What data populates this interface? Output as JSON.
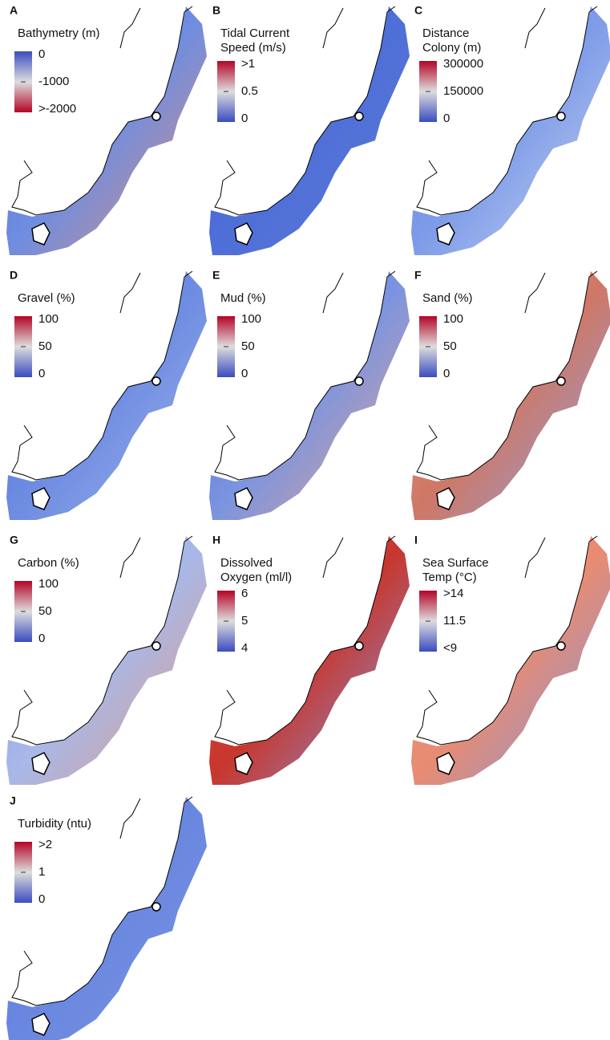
{
  "panels": [
    {
      "letter": "A",
      "title": [
        "Bathymetry (m)"
      ],
      "legend": [
        "0",
        "-1000",
        ">-2000"
      ],
      "colorbar_reversed": true
    },
    {
      "letter": "B",
      "title": [
        "Tidal Current",
        "Speed (m/s)"
      ],
      "legend": [
        ">1",
        "0.5",
        "0"
      ],
      "colorbar_reversed": false
    },
    {
      "letter": "C",
      "title": [
        "Distance",
        "Colony (m)"
      ],
      "legend": [
        "300000",
        "150000",
        "0"
      ],
      "colorbar_reversed": false
    },
    {
      "letter": "D",
      "title": [
        "Gravel (%)"
      ],
      "legend": [
        "100",
        "50",
        "0"
      ],
      "colorbar_reversed": false
    },
    {
      "letter": "E",
      "title": [
        "Mud (%)"
      ],
      "legend": [
        "100",
        "50",
        "0"
      ],
      "colorbar_reversed": false
    },
    {
      "letter": "F",
      "title": [
        "Sand (%)"
      ],
      "legend": [
        "100",
        "50",
        "0"
      ],
      "colorbar_reversed": false
    },
    {
      "letter": "G",
      "title": [
        "Carbon (%)"
      ],
      "legend": [
        "100",
        "50",
        "0"
      ],
      "colorbar_reversed": false
    },
    {
      "letter": "H",
      "title": [
        "Dissolved",
        "Oxygen (ml/l)"
      ],
      "legend": [
        "6",
        "5",
        "4"
      ],
      "colorbar_reversed": false
    },
    {
      "letter": "I",
      "title": [
        "Sea Surface",
        "Temp (°C)"
      ],
      "legend": [
        ">14",
        "11.5",
        "<9"
      ],
      "colorbar_reversed": false
    },
    {
      "letter": "J",
      "title": [
        "Turbidity (ntu)"
      ],
      "legend": [
        ">2",
        "1",
        "0"
      ],
      "colorbar_reversed": false
    }
  ]
}
